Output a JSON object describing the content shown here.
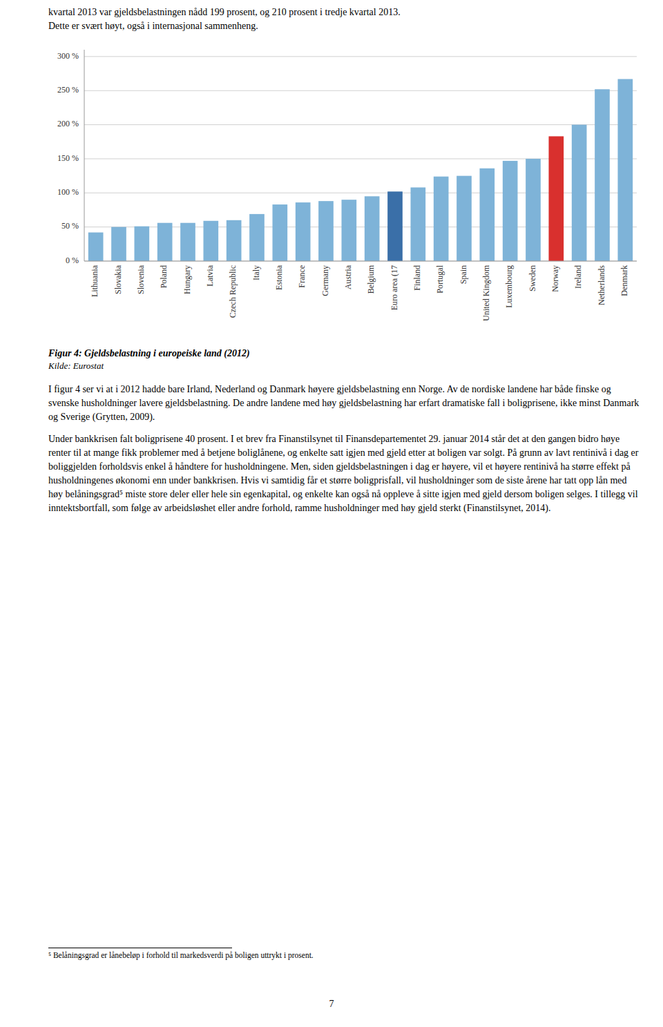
{
  "chart_data": {
    "type": "bar",
    "title": "Figur 4: Gjeldsbelastning i europeiske land (2012)",
    "source": "Kilde: Eurostat",
    "categories": [
      "Lithuania",
      "Slovakia",
      "Slovenia",
      "Poland",
      "Hungary",
      "Latvia",
      "Czech Republic",
      "Italy",
      "Estonia",
      "France",
      "Germany",
      "Austria",
      "Belgium",
      "Euro area (17",
      "Finland",
      "Portugal",
      "Spain",
      "United Kingdom",
      "Luxembourg",
      "Sweden",
      "Norway",
      "Ireland",
      "Netherlands",
      "Denmark"
    ],
    "values": [
      42,
      50,
      51,
      56,
      56,
      59,
      60,
      69,
      83,
      86,
      88,
      90,
      95,
      102,
      108,
      124,
      125,
      136,
      147,
      150,
      183,
      200,
      252,
      267
    ],
    "colors": [
      "#7eb3d8",
      "#7eb3d8",
      "#7eb3d8",
      "#7eb3d8",
      "#7eb3d8",
      "#7eb3d8",
      "#7eb3d8",
      "#7eb3d8",
      "#7eb3d8",
      "#7eb3d8",
      "#7eb3d8",
      "#7eb3d8",
      "#7eb3d8",
      "#3a6fa8",
      "#7eb3d8",
      "#7eb3d8",
      "#7eb3d8",
      "#7eb3d8",
      "#7eb3d8",
      "#7eb3d8",
      "#d9302e",
      "#7eb3d8",
      "#7eb3d8",
      "#7eb3d8"
    ],
    "ylim": [
      0,
      310
    ],
    "yticks": [
      {
        "value": 0,
        "label": "0 %"
      },
      {
        "value": 50,
        "label": "50 %"
      },
      {
        "value": 100,
        "label": "100 %"
      },
      {
        "value": 150,
        "label": "150 %"
      },
      {
        "value": 200,
        "label": "200 %"
      },
      {
        "value": 250,
        "label": "250 %"
      },
      {
        "value": 300,
        "label": "300 %"
      }
    ],
    "grid": true
  },
  "header": [
    "kvartal 2013 var gjeldsbelastningen nådd 199 prosent, og 210 prosent i tredje kvartal 2013.",
    "Dette er svært høyt, også i internasjonal sammenheng."
  ],
  "body_text": [
    "I figur 4 ser vi at i 2012 hadde bare Irland, Nederland og Danmark høyere gjeldsbelastning enn Norge. Av de nordiske landene har både finske og svenske husholdninger lavere gjeldsbelastning. De andre landene med høy gjeldsbelastning har erfart dramatiske fall i boligprisene, ikke minst Danmark og Sverige (Grytten, 2009).",
    "Under bankkrisen falt boligprisene 40 prosent. I et brev fra Finanstilsynet til Finansdepartementet 29. januar 2014 står det at den gangen bidro høye renter til at mange fikk problemer med å betjene boliglånene, og enkelte satt igjen med gjeld etter at boligen var solgt. På grunn av lavt rentinivå i dag er boliggjelden forholdsvis enkel å håndtere for husholdningene. Men, siden gjeldsbelastningen i dag er høyere, vil et høyere rentinivå ha større effekt på husholdningenes økonomi enn under bankkrisen. Hvis vi samtidig får et større boligprisfall, vil husholdninger som de siste årene har tatt opp lån med høy belåningsgrad⁵ miste store deler eller hele sin egenkapital, og enkelte kan også nå oppleve å sitte igjen med gjeld dersom boligen selges. I tillegg vil inntektsbortfall, som følge av arbeidsløshet eller andre forhold, ramme husholdninger med høy gjeld sterkt (Finanstilsynet, 2014)."
  ],
  "footnote": "⁵ Belåningsgrad er lånebeløp i forhold til markedsverdi på boligen uttrykt i prosent.",
  "page_number": "7"
}
